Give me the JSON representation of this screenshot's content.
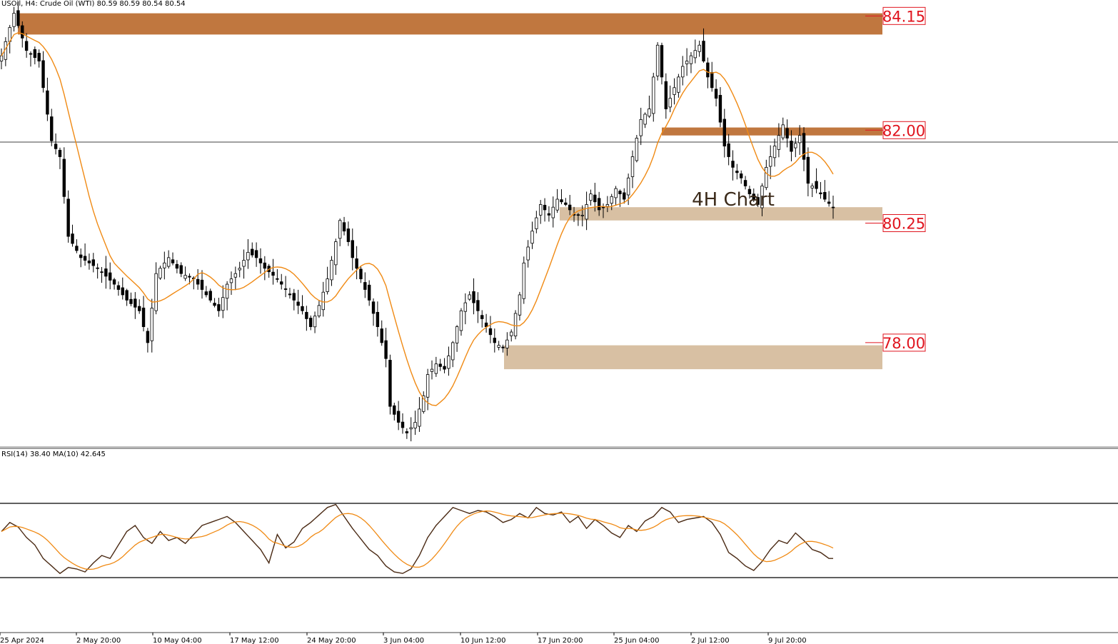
{
  "header": {
    "symbol": "USOil",
    "timeframe": "H4:",
    "instrument": "Crude Oil (WTI)",
    "ohlc": "80.59 80.59 80.54 80.54"
  },
  "rsi_header": "RSI(14) 38.40 MA(10) 42.645",
  "annotation": "4H Chart",
  "colors": {
    "candle": "#000000",
    "ma": "#f08a14",
    "rsi": "#4a2a14",
    "resistance_zone": "#c0773f",
    "support_zone": "#d8c0a3",
    "level_label": "#e0141e"
  },
  "chart_data": [
    {
      "type": "candlestick",
      "title": "",
      "overlay": "moving average",
      "ylim": [
        76.05,
        84.45
      ],
      "current_price": 80.54,
      "levels": [
        {
          "value": 84.15,
          "label": "84.15",
          "zone": [
            83.8,
            84.2
          ],
          "style": "resistance"
        },
        {
          "value": 82.0,
          "label": "82.00",
          "zone": [
            81.9,
            82.05
          ],
          "style": "resistance"
        },
        {
          "value": 80.25,
          "label": "80.25",
          "zone": [
            80.3,
            80.55
          ],
          "style": "support"
        },
        {
          "value": 78.0,
          "label": "78.00",
          "zone": [
            77.5,
            77.95
          ],
          "style": "support"
        }
      ],
      "x_ticks": [
        "25 Apr 2024",
        "2 May 20:00",
        "10 May 04:00",
        "17 May 12:00",
        "24 May 20:00",
        "3 Jun 04:00",
        "10 Jun 12:00",
        "17 Jun 20:00",
        "25 Jun 04:00",
        "2 Jul 12:00",
        "9 Jul 20:00"
      ],
      "close_path": [
        [
          0,
          83.4
        ],
        [
          3,
          84.2
        ],
        [
          6,
          83.5
        ],
        [
          9,
          83.3
        ],
        [
          12,
          81.8
        ],
        [
          14,
          81.5
        ],
        [
          16,
          80.0
        ],
        [
          19,
          79.6
        ],
        [
          23,
          79.4
        ],
        [
          27,
          79.1
        ],
        [
          30,
          78.8
        ],
        [
          33,
          78.6
        ],
        [
          35,
          78.0
        ],
        [
          37,
          79.3
        ],
        [
          40,
          79.6
        ],
        [
          43,
          79.3
        ],
        [
          46,
          79.2
        ],
        [
          49,
          78.9
        ],
        [
          52,
          78.6
        ],
        [
          54,
          79.1
        ],
        [
          57,
          79.4
        ],
        [
          59,
          79.7
        ],
        [
          61,
          79.6
        ],
        [
          63,
          79.4
        ],
        [
          66,
          79.2
        ],
        [
          69,
          78.9
        ],
        [
          72,
          78.6
        ],
        [
          74,
          78.3
        ],
        [
          76,
          78.7
        ],
        [
          78,
          79.2
        ],
        [
          80,
          79.9
        ],
        [
          81,
          80.3
        ],
        [
          83,
          79.9
        ],
        [
          84,
          79.6
        ],
        [
          86,
          79.2
        ],
        [
          88,
          78.8
        ],
        [
          90,
          78.3
        ],
        [
          92,
          77.7
        ],
        [
          93,
          76.8
        ],
        [
          95,
          76.5
        ],
        [
          97,
          76.3
        ],
        [
          99,
          76.5
        ],
        [
          101,
          77.0
        ],
        [
          102,
          77.4
        ],
        [
          104,
          77.6
        ],
        [
          106,
          77.5
        ],
        [
          108,
          78.0
        ],
        [
          110,
          78.6
        ],
        [
          112,
          78.9
        ],
        [
          114,
          78.6
        ],
        [
          116,
          78.3
        ],
        [
          118,
          78.0
        ],
        [
          120,
          77.9
        ],
        [
          122,
          78.2
        ],
        [
          124,
          78.9
        ],
        [
          125,
          79.5
        ],
        [
          127,
          80.1
        ],
        [
          129,
          80.6
        ],
        [
          131,
          80.4
        ],
        [
          133,
          80.7
        ],
        [
          135,
          80.6
        ],
        [
          137,
          80.4
        ],
        [
          139,
          80.4
        ],
        [
          141,
          80.8
        ],
        [
          143,
          80.5
        ],
        [
          145,
          80.6
        ],
        [
          147,
          80.9
        ],
        [
          149,
          80.7
        ],
        [
          151,
          81.5
        ],
        [
          153,
          82.2
        ],
        [
          155,
          82.4
        ],
        [
          157,
          83.6
        ],
        [
          159,
          82.4
        ],
        [
          161,
          82.8
        ],
        [
          163,
          83.2
        ],
        [
          165,
          83.4
        ],
        [
          167,
          83.6
        ],
        [
          169,
          83.0
        ],
        [
          171,
          82.6
        ],
        [
          173,
          81.7
        ],
        [
          175,
          81.3
        ],
        [
          177,
          81.1
        ],
        [
          179,
          80.8
        ],
        [
          181,
          80.6
        ],
        [
          183,
          81.3
        ],
        [
          185,
          81.7
        ],
        [
          187,
          82.1
        ],
        [
          189,
          81.6
        ],
        [
          191,
          81.9
        ],
        [
          193,
          81.0
        ],
        [
          195,
          80.9
        ],
        [
          197,
          80.7
        ],
        [
          199,
          80.54
        ]
      ]
    },
    {
      "type": "line",
      "title": "",
      "ylim": [
        0,
        100
      ],
      "levels": [
        70,
        30
      ],
      "rsi_path": [
        [
          0,
          56
        ],
        [
          2,
          62
        ],
        [
          4,
          59
        ],
        [
          6,
          52
        ],
        [
          8,
          47
        ],
        [
          10,
          38
        ],
        [
          12,
          33
        ],
        [
          14,
          28
        ],
        [
          16,
          32
        ],
        [
          18,
          31
        ],
        [
          20,
          29
        ],
        [
          22,
          35
        ],
        [
          24,
          40
        ],
        [
          26,
          38
        ],
        [
          28,
          47
        ],
        [
          30,
          56
        ],
        [
          32,
          60
        ],
        [
          34,
          52
        ],
        [
          36,
          48
        ],
        [
          38,
          56
        ],
        [
          40,
          50
        ],
        [
          42,
          52
        ],
        [
          44,
          48
        ],
        [
          46,
          54
        ],
        [
          48,
          60
        ],
        [
          50,
          62
        ],
        [
          52,
          64
        ],
        [
          54,
          66
        ],
        [
          56,
          62
        ],
        [
          58,
          56
        ],
        [
          60,
          50
        ],
        [
          62,
          44
        ],
        [
          64,
          35
        ],
        [
          66,
          54
        ],
        [
          68,
          45
        ],
        [
          70,
          49
        ],
        [
          72,
          58
        ],
        [
          74,
          62
        ],
        [
          76,
          67
        ],
        [
          78,
          72
        ],
        [
          80,
          74
        ],
        [
          82,
          66
        ],
        [
          84,
          58
        ],
        [
          86,
          51
        ],
        [
          88,
          44
        ],
        [
          90,
          40
        ],
        [
          92,
          33
        ],
        [
          94,
          29
        ],
        [
          96,
          28
        ],
        [
          98,
          31
        ],
        [
          100,
          40
        ],
        [
          102,
          52
        ],
        [
          104,
          60
        ],
        [
          106,
          66
        ],
        [
          108,
          72
        ],
        [
          110,
          70
        ],
        [
          112,
          68
        ],
        [
          114,
          70
        ],
        [
          116,
          69
        ],
        [
          118,
          66
        ],
        [
          120,
          62
        ],
        [
          122,
          64
        ],
        [
          124,
          68
        ],
        [
          126,
          65
        ],
        [
          128,
          72
        ],
        [
          130,
          68
        ],
        [
          132,
          67
        ],
        [
          134,
          69
        ],
        [
          136,
          62
        ],
        [
          138,
          66
        ],
        [
          140,
          58
        ],
        [
          142,
          64
        ],
        [
          144,
          60
        ],
        [
          146,
          55
        ],
        [
          148,
          52
        ],
        [
          150,
          60
        ],
        [
          152,
          56
        ],
        [
          154,
          63
        ],
        [
          156,
          66
        ],
        [
          158,
          72
        ],
        [
          160,
          69
        ],
        [
          162,
          62
        ],
        [
          164,
          64
        ],
        [
          166,
          65
        ],
        [
          168,
          66
        ],
        [
          170,
          62
        ],
        [
          172,
          54
        ],
        [
          174,
          42
        ],
        [
          176,
          38
        ],
        [
          178,
          33
        ],
        [
          180,
          30
        ],
        [
          182,
          36
        ],
        [
          184,
          44
        ],
        [
          186,
          50
        ],
        [
          188,
          48
        ],
        [
          190,
          55
        ],
        [
          192,
          50
        ],
        [
          194,
          44
        ],
        [
          196,
          42
        ],
        [
          198,
          38
        ]
      ]
    }
  ]
}
